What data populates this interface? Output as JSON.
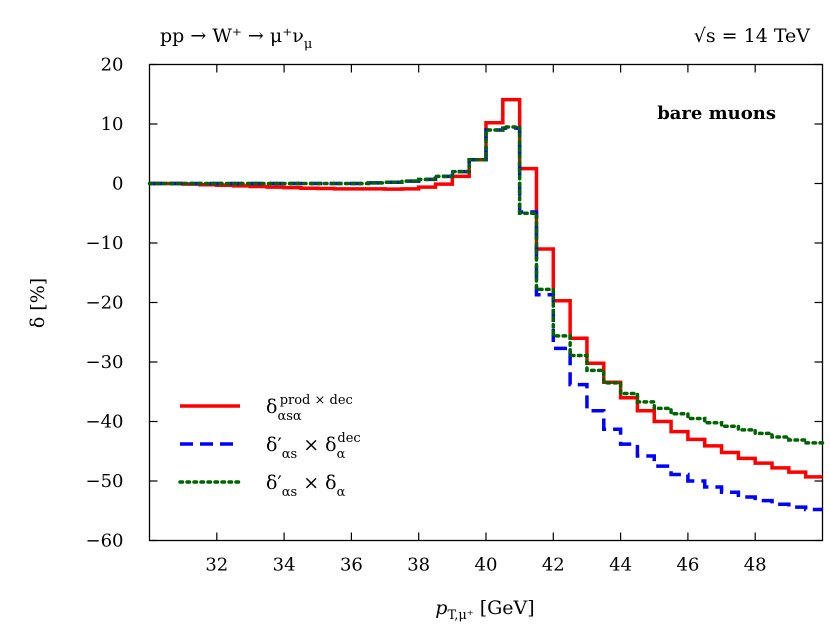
{
  "header": {
    "process": "pp → W⁺ → μ⁺ν",
    "process_sub": "μ",
    "energy": "√s = 14 TeV"
  },
  "chart_data": {
    "type": "line",
    "xlabel": "p",
    "xlabel_sub": "T,μ⁺",
    "xlabel_unit": " [GeV]",
    "ylabel": "δ [%]",
    "xlim": [
      30,
      50
    ],
    "ylim": [
      -60,
      20
    ],
    "xticks": [
      "32",
      "34",
      "36",
      "38",
      "40",
      "42",
      "44",
      "46",
      "48"
    ],
    "yticks": [
      "20",
      "10",
      "0",
      "−10",
      "−20",
      "−30",
      "−40",
      "−50",
      "−60"
    ],
    "annotation": "bare muons",
    "grid": false,
    "legend_position": "bottom-left",
    "bin_edges": [
      30,
      30.5,
      31,
      31.5,
      32,
      32.5,
      33,
      33.5,
      34,
      34.5,
      35,
      35.5,
      36,
      36.5,
      37,
      37.5,
      38,
      38.5,
      39,
      39.5,
      40,
      40.5,
      41,
      41.5,
      42,
      42.5,
      43,
      43.5,
      44,
      44.5,
      45,
      45.5,
      46,
      46.5,
      47,
      47.5,
      48,
      48.5,
      49,
      49.5,
      50
    ],
    "series": [
      {
        "name": "δ^{prod×dec}_{α_s α}",
        "name_main": "δ",
        "name_sup": "prod × dec",
        "name_sub": "αsα",
        "color": "#ff0000",
        "style": "solid",
        "values": [
          0,
          0,
          -0.1,
          -0.2,
          -0.3,
          -0.4,
          -0.5,
          -0.6,
          -0.7,
          -0.8,
          -0.85,
          -0.9,
          -0.9,
          -0.9,
          -0.95,
          -0.9,
          -0.6,
          -0.1,
          1.2,
          4,
          10.2,
          14.1,
          2.5,
          -11,
          -19.7,
          -26,
          -30.2,
          -33.4,
          -36,
          -38.2,
          -40,
          -41.7,
          -43,
          -44.1,
          -45.2,
          -46.2,
          -47,
          -47.8,
          -48.5,
          -49.3
        ]
      },
      {
        "name": "δ′_{α_s} × δ^{dec}_α",
        "name_main": "δ′",
        "name_sup": "",
        "name_sub": "αs",
        "name_tail": "× δ",
        "name_tail_sup": "dec",
        "name_tail_sub": "α",
        "color": "#0000ff",
        "style": "dashed",
        "values": [
          0,
          0,
          0,
          0,
          0,
          0,
          0,
          0,
          0,
          0,
          0,
          0,
          0,
          0.1,
          0.2,
          0.4,
          0.7,
          1.2,
          2,
          4,
          9,
          9.3,
          -4.8,
          -18.7,
          -27.7,
          -33.8,
          -38.2,
          -41.3,
          -43.8,
          -45.8,
          -47.5,
          -48.9,
          -50,
          -51,
          -51.9,
          -52.7,
          -53.3,
          -53.9,
          -54.4,
          -54.8
        ]
      },
      {
        "name": "δ′_{α_s} × δ_α",
        "name_main": "δ′",
        "name_sup": "",
        "name_sub": "αs",
        "name_tail": "× δ",
        "name_tail_sup": "",
        "name_tail_sub": "α",
        "color": "#006400",
        "style": "dotted",
        "values": [
          0,
          0,
          0,
          0,
          0,
          0,
          0,
          0,
          0,
          0,
          0,
          0,
          0,
          0.1,
          0.2,
          0.4,
          0.7,
          1.2,
          2,
          4,
          9,
          9.5,
          -5,
          -17.8,
          -25.6,
          -28.9,
          -31.4,
          -33.5,
          -35.3,
          -36.7,
          -37.8,
          -38.7,
          -39.5,
          -40.2,
          -40.8,
          -41.4,
          -42,
          -42.6,
          -43.1,
          -43.6
        ]
      }
    ]
  }
}
